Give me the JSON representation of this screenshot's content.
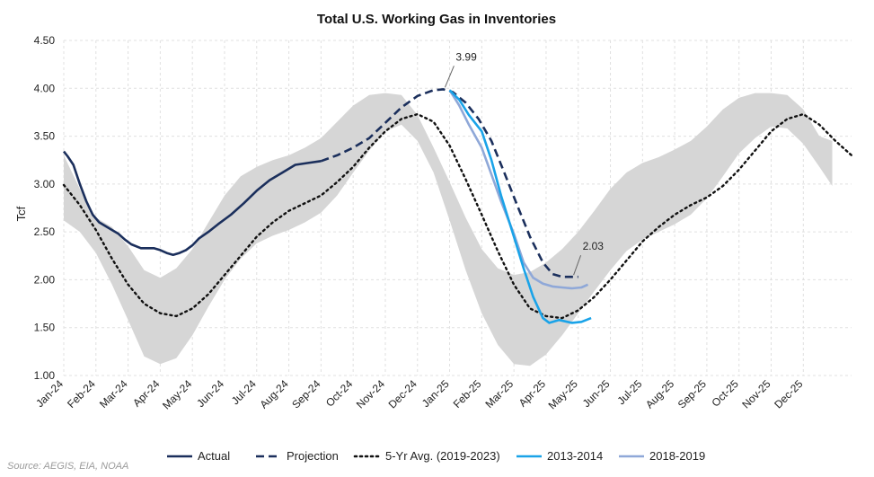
{
  "chart_data": {
    "type": "line",
    "title": "Total U.S. Working Gas in Inventories",
    "ylabel": "Tcf",
    "xlabel": "",
    "ylim": [
      1.0,
      4.5
    ],
    "yticks": [
      "1.00",
      "1.50",
      "2.00",
      "2.50",
      "3.00",
      "3.50",
      "4.00",
      "4.50"
    ],
    "x_categories": [
      "Jan-24",
      "Feb-24",
      "Mar-24",
      "Apr-24",
      "May-24",
      "Jun-24",
      "Jul-24",
      "Aug-24",
      "Sep-24",
      "Oct-24",
      "Nov-24",
      "Dec-24",
      "Jan-25",
      "Feb-25",
      "Mar-25",
      "Apr-25",
      "May-25",
      "Jun-25",
      "Jul-25",
      "Aug-25",
      "Sep-25",
      "Oct-25",
      "Nov-25",
      "Dec-25"
    ],
    "grid": "vertical and horizontal dashed",
    "legend_position": "bottom",
    "range_band": {
      "upper": [
        [
          0.0,
          3.3
        ],
        [
          0.5,
          2.95
        ],
        [
          1.0,
          2.65
        ],
        [
          1.5,
          2.55
        ],
        [
          2.0,
          2.35
        ],
        [
          2.5,
          2.1
        ],
        [
          3.0,
          2.02
        ],
        [
          3.5,
          2.12
        ],
        [
          4.0,
          2.32
        ],
        [
          4.5,
          2.6
        ],
        [
          5.0,
          2.88
        ],
        [
          5.5,
          3.08
        ],
        [
          6.0,
          3.18
        ],
        [
          6.5,
          3.25
        ],
        [
          7.0,
          3.3
        ],
        [
          7.5,
          3.38
        ],
        [
          8.0,
          3.48
        ],
        [
          8.5,
          3.65
        ],
        [
          9.0,
          3.82
        ],
        [
          9.5,
          3.93
        ],
        [
          10.0,
          3.95
        ],
        [
          10.5,
          3.93
        ],
        [
          11.0,
          3.72
        ],
        [
          11.5,
          3.38
        ],
        [
          12.0,
          3.02
        ],
        [
          12.5,
          2.65
        ],
        [
          13.0,
          2.32
        ],
        [
          13.5,
          2.12
        ],
        [
          14.0,
          2.05
        ],
        [
          14.5,
          2.08
        ],
        [
          15.0,
          2.18
        ],
        [
          15.5,
          2.32
        ],
        [
          16.0,
          2.5
        ],
        [
          16.5,
          2.72
        ],
        [
          17.0,
          2.95
        ],
        [
          17.5,
          3.12
        ],
        [
          18.0,
          3.22
        ],
        [
          18.5,
          3.28
        ],
        [
          19.0,
          3.36
        ],
        [
          19.5,
          3.45
        ],
        [
          20.0,
          3.6
        ],
        [
          20.5,
          3.78
        ],
        [
          21.0,
          3.9
        ],
        [
          21.5,
          3.95
        ],
        [
          22.0,
          3.95
        ],
        [
          22.5,
          3.93
        ],
        [
          23.0,
          3.78
        ],
        [
          23.5,
          3.5
        ],
        [
          23.9,
          3.45
        ]
      ],
      "lower": [
        [
          0.0,
          2.62
        ],
        [
          0.5,
          2.5
        ],
        [
          1.0,
          2.28
        ],
        [
          1.5,
          1.95
        ],
        [
          2.0,
          1.58
        ],
        [
          2.5,
          1.2
        ],
        [
          3.0,
          1.12
        ],
        [
          3.5,
          1.18
        ],
        [
          4.0,
          1.42
        ],
        [
          4.5,
          1.72
        ],
        [
          5.0,
          2.0
        ],
        [
          5.5,
          2.22
        ],
        [
          6.0,
          2.38
        ],
        [
          6.5,
          2.46
        ],
        [
          7.0,
          2.52
        ],
        [
          7.5,
          2.6
        ],
        [
          8.0,
          2.7
        ],
        [
          8.5,
          2.88
        ],
        [
          9.0,
          3.12
        ],
        [
          9.5,
          3.35
        ],
        [
          10.0,
          3.55
        ],
        [
          10.5,
          3.62
        ],
        [
          11.0,
          3.45
        ],
        [
          11.5,
          3.12
        ],
        [
          12.0,
          2.62
        ],
        [
          12.5,
          2.1
        ],
        [
          13.0,
          1.65
        ],
        [
          13.5,
          1.32
        ],
        [
          14.0,
          1.12
        ],
        [
          14.5,
          1.1
        ],
        [
          15.0,
          1.22
        ],
        [
          15.5,
          1.42
        ],
        [
          16.0,
          1.65
        ],
        [
          16.5,
          1.88
        ],
        [
          17.0,
          2.1
        ],
        [
          17.5,
          2.3
        ],
        [
          18.0,
          2.42
        ],
        [
          18.5,
          2.5
        ],
        [
          19.0,
          2.58
        ],
        [
          19.5,
          2.68
        ],
        [
          20.0,
          2.85
        ],
        [
          20.5,
          3.08
        ],
        [
          21.0,
          3.32
        ],
        [
          21.5,
          3.48
        ],
        [
          22.0,
          3.6
        ],
        [
          22.5,
          3.58
        ],
        [
          23.0,
          3.42
        ],
        [
          23.5,
          3.18
        ],
        [
          23.9,
          2.98
        ]
      ]
    },
    "series": [
      {
        "name": "Actual",
        "color": "#1b2f5c",
        "style": "solid",
        "points": [
          [
            0.0,
            3.34
          ],
          [
            0.12,
            3.29
          ],
          [
            0.3,
            3.2
          ],
          [
            0.5,
            3.0
          ],
          [
            0.7,
            2.82
          ],
          [
            0.9,
            2.68
          ],
          [
            1.1,
            2.6
          ],
          [
            1.4,
            2.54
          ],
          [
            1.7,
            2.48
          ],
          [
            1.9,
            2.42
          ],
          [
            2.1,
            2.37
          ],
          [
            2.4,
            2.33
          ],
          [
            2.8,
            2.33
          ],
          [
            3.0,
            2.31
          ],
          [
            3.2,
            2.28
          ],
          [
            3.4,
            2.26
          ],
          [
            3.6,
            2.28
          ],
          [
            3.8,
            2.31
          ],
          [
            4.0,
            2.36
          ],
          [
            4.2,
            2.43
          ],
          [
            4.5,
            2.5
          ],
          [
            4.8,
            2.58
          ],
          [
            5.2,
            2.68
          ],
          [
            5.6,
            2.8
          ],
          [
            6.0,
            2.93
          ],
          [
            6.4,
            3.04
          ],
          [
            6.8,
            3.12
          ],
          [
            7.2,
            3.2
          ],
          [
            7.6,
            3.22
          ],
          [
            8.0,
            3.24
          ]
        ]
      },
      {
        "name": "Projection",
        "color": "#1b2f5c",
        "style": "dashed",
        "points": [
          [
            8.0,
            3.24
          ],
          [
            8.5,
            3.3
          ],
          [
            9.0,
            3.38
          ],
          [
            9.5,
            3.48
          ],
          [
            10.0,
            3.64
          ],
          [
            10.5,
            3.8
          ],
          [
            11.0,
            3.92
          ],
          [
            11.5,
            3.98
          ],
          [
            11.8,
            3.99
          ],
          [
            12.1,
            3.96
          ],
          [
            12.5,
            3.85
          ],
          [
            12.9,
            3.68
          ],
          [
            13.3,
            3.45
          ],
          [
            13.7,
            3.12
          ],
          [
            14.1,
            2.78
          ],
          [
            14.5,
            2.45
          ],
          [
            14.9,
            2.18
          ],
          [
            15.2,
            2.06
          ],
          [
            15.5,
            2.03
          ],
          [
            15.8,
            2.03
          ],
          [
            16.0,
            2.03
          ]
        ]
      },
      {
        "name": "5-Yr Avg. (2019-2023)",
        "color": "#111111",
        "style": "dotted",
        "points": [
          [
            0.0,
            2.99
          ],
          [
            0.5,
            2.78
          ],
          [
            1.0,
            2.52
          ],
          [
            1.5,
            2.22
          ],
          [
            2.0,
            1.95
          ],
          [
            2.5,
            1.75
          ],
          [
            3.0,
            1.65
          ],
          [
            3.5,
            1.62
          ],
          [
            4.0,
            1.7
          ],
          [
            4.5,
            1.85
          ],
          [
            5.0,
            2.05
          ],
          [
            5.5,
            2.25
          ],
          [
            6.0,
            2.45
          ],
          [
            6.5,
            2.6
          ],
          [
            7.0,
            2.72
          ],
          [
            7.5,
            2.8
          ],
          [
            8.0,
            2.88
          ],
          [
            8.5,
            3.02
          ],
          [
            9.0,
            3.18
          ],
          [
            9.5,
            3.38
          ],
          [
            10.0,
            3.55
          ],
          [
            10.5,
            3.68
          ],
          [
            11.0,
            3.73
          ],
          [
            11.5,
            3.65
          ],
          [
            12.0,
            3.4
          ],
          [
            12.5,
            3.05
          ],
          [
            13.0,
            2.68
          ],
          [
            13.5,
            2.3
          ],
          [
            14.0,
            1.95
          ],
          [
            14.5,
            1.7
          ],
          [
            15.0,
            1.62
          ],
          [
            15.5,
            1.6
          ],
          [
            16.0,
            1.68
          ],
          [
            16.5,
            1.82
          ],
          [
            17.0,
            2.0
          ],
          [
            17.5,
            2.2
          ],
          [
            18.0,
            2.4
          ],
          [
            18.5,
            2.55
          ],
          [
            19.0,
            2.68
          ],
          [
            19.5,
            2.78
          ],
          [
            20.0,
            2.86
          ],
          [
            20.5,
            2.98
          ],
          [
            21.0,
            3.15
          ],
          [
            21.5,
            3.35
          ],
          [
            22.0,
            3.55
          ],
          [
            22.5,
            3.68
          ],
          [
            23.0,
            3.73
          ],
          [
            23.5,
            3.62
          ],
          [
            24.0,
            3.45
          ],
          [
            24.5,
            3.3
          ],
          [
            24.8,
            3.25
          ]
        ]
      },
      {
        "name": "2013-2014",
        "color": "#1aa3e8",
        "style": "solid",
        "points": [
          [
            12.0,
            3.98
          ],
          [
            12.3,
            3.88
          ],
          [
            12.6,
            3.72
          ],
          [
            13.0,
            3.55
          ],
          [
            13.3,
            3.25
          ],
          [
            13.6,
            2.88
          ],
          [
            14.0,
            2.45
          ],
          [
            14.3,
            2.12
          ],
          [
            14.6,
            1.82
          ],
          [
            14.9,
            1.6
          ],
          [
            15.1,
            1.55
          ],
          [
            15.4,
            1.58
          ],
          [
            15.8,
            1.55
          ],
          [
            16.1,
            1.56
          ],
          [
            16.4,
            1.6
          ]
        ]
      },
      {
        "name": "2018-2019",
        "color": "#8fa8d8",
        "style": "solid",
        "points": [
          [
            12.0,
            3.98
          ],
          [
            12.3,
            3.82
          ],
          [
            12.6,
            3.62
          ],
          [
            13.0,
            3.38
          ],
          [
            13.3,
            3.1
          ],
          [
            13.6,
            2.82
          ],
          [
            14.0,
            2.48
          ],
          [
            14.3,
            2.18
          ],
          [
            14.6,
            2.02
          ],
          [
            14.9,
            1.96
          ],
          [
            15.2,
            1.93
          ],
          [
            15.5,
            1.92
          ],
          [
            15.8,
            1.91
          ],
          [
            16.1,
            1.92
          ],
          [
            16.3,
            1.95
          ]
        ]
      }
    ],
    "annotations": [
      {
        "text": "3.99",
        "x": 11.8,
        "y": 3.99
      },
      {
        "text": "2.03",
        "x": 15.8,
        "y": 2.03
      }
    ],
    "source": "Source: AEGIS, EIA, NOAA"
  }
}
